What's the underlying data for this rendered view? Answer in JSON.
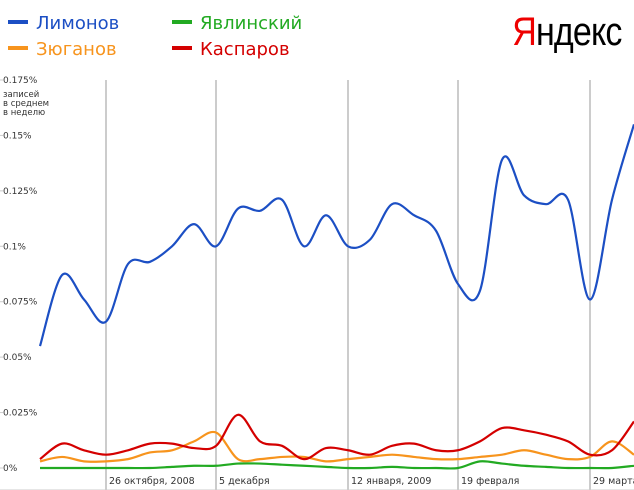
{
  "chart_data": {
    "type": "line",
    "logo": "Яндекс",
    "ylabel": [
      "записей",
      "в среднем",
      "в неделю"
    ],
    "categories": [
      null,
      null,
      null,
      "26 октября, 2008",
      null,
      null,
      null,
      null,
      "5 декабря",
      null,
      null,
      null,
      null,
      null,
      "12 января, 2009",
      null,
      null,
      null,
      null,
      "19 февраля",
      null,
      null,
      null,
      null,
      null,
      "29 марта",
      null,
      null
    ],
    "series": [
      {
        "name": "Лимонов",
        "color": "#1c4fc4",
        "values": [
          0.055,
          0.087,
          0.076,
          0.066,
          0.092,
          0.093,
          0.1,
          0.11,
          0.1,
          0.117,
          0.116,
          0.121,
          0.1,
          0.114,
          0.1,
          0.103,
          0.119,
          0.114,
          0.107,
          0.083,
          0.08,
          0.139,
          0.123,
          0.119,
          0.121,
          0.076,
          0.121,
          0.155
        ]
      },
      {
        "name": "Явлинский",
        "color": "#22aa22",
        "values": [
          0,
          0,
          0,
          0,
          0,
          0,
          0.0005,
          0.001,
          0.001,
          0.002,
          0.002,
          0.0015,
          0.001,
          0.0005,
          0,
          0,
          0.0005,
          0,
          0,
          0,
          0.003,
          0.002,
          0.001,
          0.0005,
          0,
          0,
          0,
          0.001
        ]
      },
      {
        "name": "Зюганов",
        "color": "#f7941d",
        "values": [
          0.003,
          0.005,
          0.003,
          0.003,
          0.004,
          0.007,
          0.008,
          0.012,
          0.016,
          0.004,
          0.004,
          0.005,
          0.005,
          0.003,
          0.004,
          0.005,
          0.006,
          0.005,
          0.004,
          0.004,
          0.005,
          0.006,
          0.008,
          0.006,
          0.004,
          0.005,
          0.012,
          0.006
        ]
      },
      {
        "name": "Каспаров",
        "color": "#d40000",
        "values": [
          0.004,
          0.011,
          0.008,
          0.006,
          0.008,
          0.011,
          0.011,
          0.009,
          0.01,
          0.024,
          0.012,
          0.01,
          0.004,
          0.009,
          0.008,
          0.006,
          0.01,
          0.011,
          0.008,
          0.008,
          0.012,
          0.018,
          0.017,
          0.015,
          0.012,
          0.006,
          0.008,
          0.021
        ]
      }
    ],
    "ylim": [
      0,
      0.175
    ],
    "yticks": [
      {
        "value": 0,
        "label": "0%"
      },
      {
        "value": 0.025,
        "label": "0.025%"
      },
      {
        "value": 0.05,
        "label": "0.05%"
      },
      {
        "value": 0.075,
        "label": "0.075%"
      },
      {
        "value": 0.1,
        "label": "0.1%"
      },
      {
        "value": 0.125,
        "label": "0.125%"
      },
      {
        "value": 0.15,
        "label": "0.15%"
      },
      {
        "value": 0.175,
        "label": "0.175%"
      }
    ]
  }
}
